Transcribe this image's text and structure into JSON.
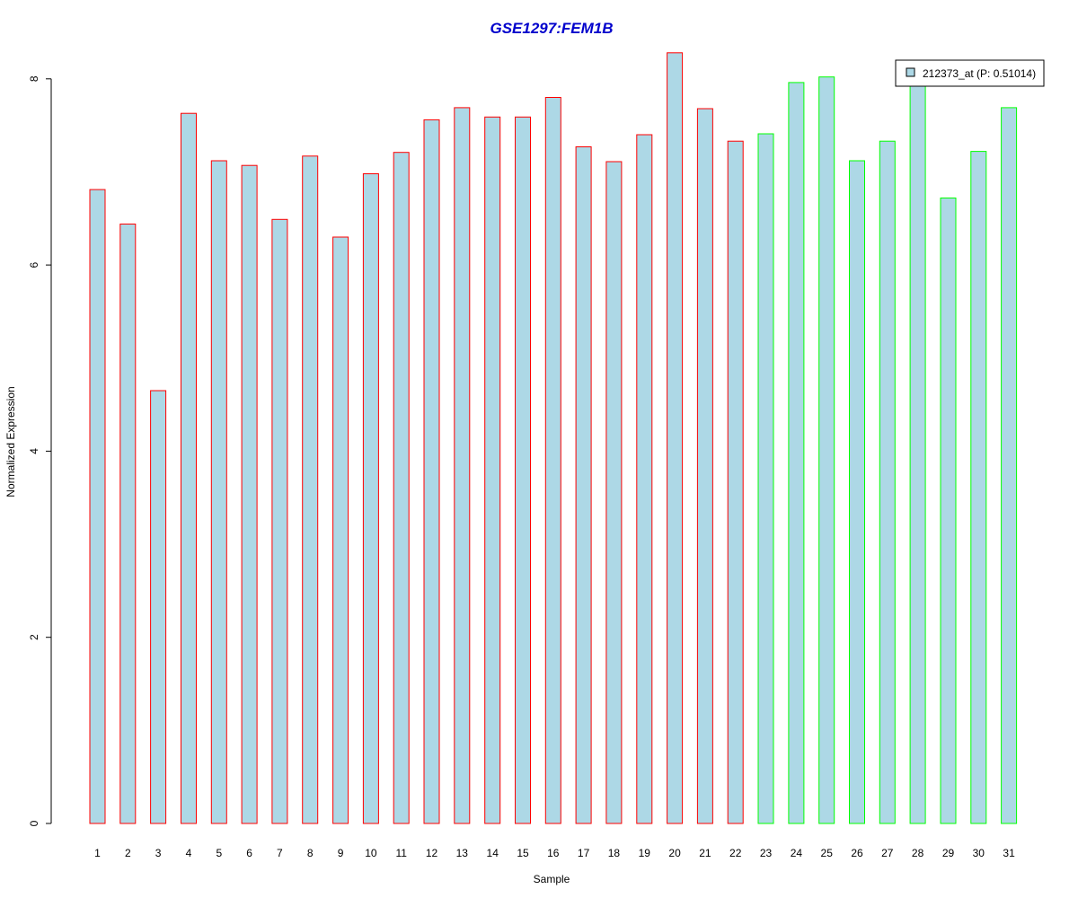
{
  "chart_data": {
    "type": "bar",
    "title": "GSE1297:FEM1B",
    "title_color": "#0000CC",
    "xlabel": "Sample",
    "ylabel": "Normalized Expression",
    "ylim": [
      0,
      8.3
    ],
    "yticks": [
      "0",
      "2",
      "4",
      "6",
      "8"
    ],
    "grid": false,
    "legend_position": "top-right",
    "categories": [
      "1",
      "2",
      "3",
      "4",
      "5",
      "6",
      "7",
      "8",
      "9",
      "10",
      "11",
      "12",
      "13",
      "14",
      "15",
      "16",
      "17",
      "18",
      "19",
      "20",
      "21",
      "22",
      "23",
      "24",
      "25",
      "26",
      "27",
      "28",
      "29",
      "30",
      "31"
    ],
    "series": [
      {
        "name": "212373_at (P: 0.51014)",
        "fill_color": "#ADD8E6",
        "values": [
          6.81,
          6.44,
          4.65,
          7.63,
          7.12,
          7.07,
          6.49,
          7.17,
          6.3,
          6.98,
          7.21,
          7.56,
          7.69,
          7.59,
          7.59,
          7.8,
          7.27,
          7.11,
          7.4,
          8.28,
          7.68,
          7.33,
          7.41,
          7.96,
          8.02,
          7.12,
          7.33,
          7.96,
          6.72,
          7.22,
          7.69
        ]
      }
    ],
    "group_border_colors": [
      "#FF0000",
      "#FF0000",
      "#FF0000",
      "#FF0000",
      "#FF0000",
      "#FF0000",
      "#FF0000",
      "#FF0000",
      "#FF0000",
      "#FF0000",
      "#FF0000",
      "#FF0000",
      "#FF0000",
      "#FF0000",
      "#FF0000",
      "#FF0000",
      "#FF0000",
      "#FF0000",
      "#FF0000",
      "#FF0000",
      "#FF0000",
      "#FF0000",
      "#00FF00",
      "#00FF00",
      "#00FF00",
      "#00FF00",
      "#00FF00",
      "#00FF00",
      "#00FF00",
      "#00FF00",
      "#00FF00"
    ]
  }
}
